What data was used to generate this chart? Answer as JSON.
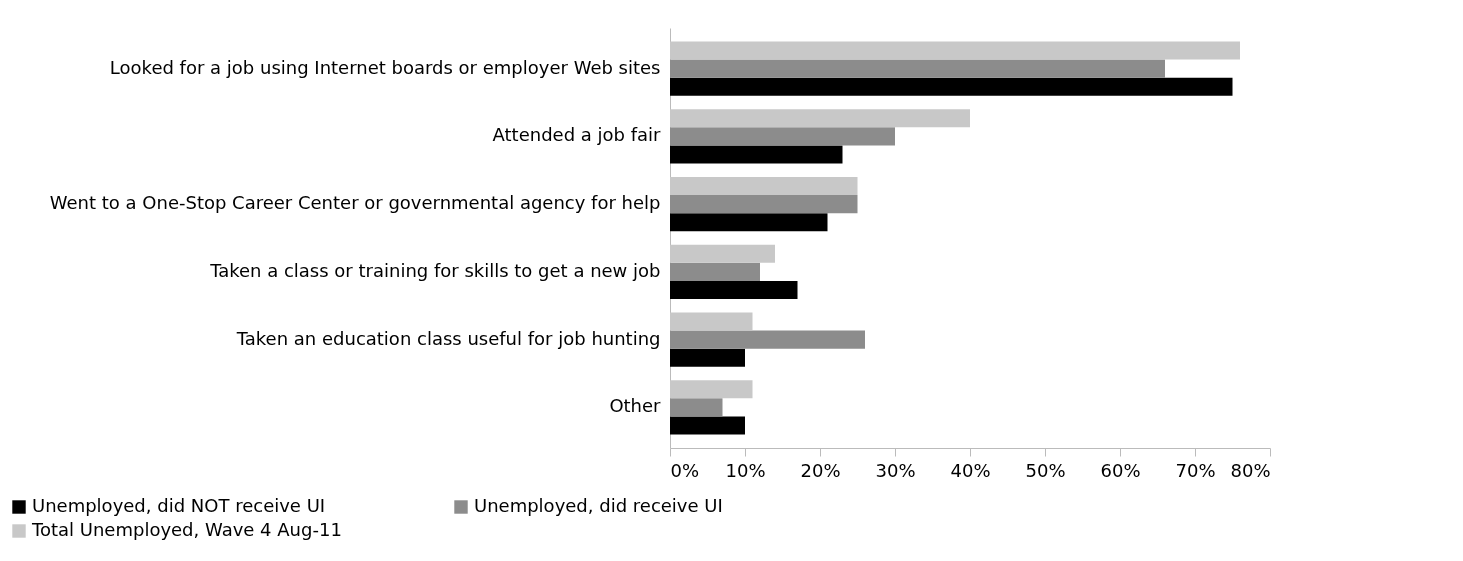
{
  "chart_data": {
    "type": "bar",
    "orientation": "horizontal",
    "categories": [
      "Looked for a job using Internet boards or employer Web sites",
      "Attended a job fair",
      "Went to a One-Stop Career Center or governmental agency for help",
      "Taken a class or training for skills to get a new job",
      "Taken an education class useful for job hunting",
      "Other"
    ],
    "series": [
      {
        "name": "Unemployed, did NOT receive UI",
        "color": "#000000",
        "values": [
          75,
          23,
          21,
          17,
          10,
          10
        ]
      },
      {
        "name": "Unemployed, did receive UI",
        "color": "#8c8c8c",
        "values": [
          66,
          30,
          25,
          12,
          26,
          7
        ]
      },
      {
        "name": "Total Unemployed, Wave 4 Aug-11",
        "color": "#c8c8c8",
        "values": [
          76,
          40,
          25,
          14,
          11,
          11
        ]
      }
    ],
    "xlim": [
      0,
      80
    ],
    "xticks": [
      {
        "value": 0,
        "label": "0%"
      },
      {
        "value": 10,
        "label": "10%"
      },
      {
        "value": 20,
        "label": "20%"
      },
      {
        "value": 30,
        "label": "30%"
      },
      {
        "value": 40,
        "label": "40%"
      },
      {
        "value": 50,
        "label": "50%"
      },
      {
        "value": 60,
        "label": "60%"
      },
      {
        "value": 70,
        "label": "70%"
      },
      {
        "value": 80,
        "label": "80%"
      }
    ],
    "grid": false,
    "legend": "bottom left"
  }
}
